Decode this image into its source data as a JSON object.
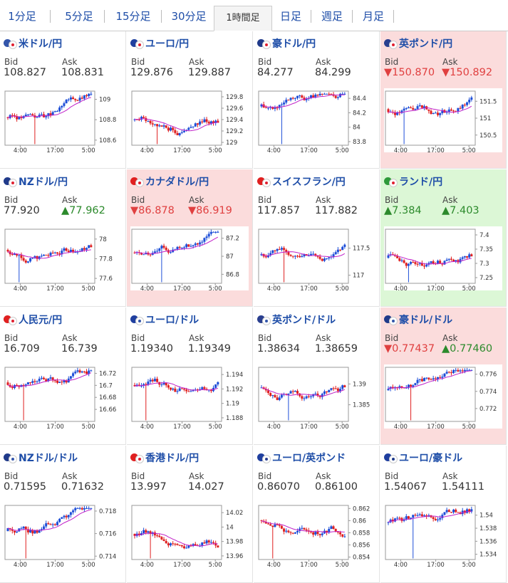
{
  "tabs": [
    {
      "label": "1分足",
      "active": false
    },
    {
      "label": "5分足",
      "active": false
    },
    {
      "label": "15分足",
      "active": false
    },
    {
      "label": "30分足",
      "active": false
    },
    {
      "label": "1時間足",
      "active": true
    },
    {
      "label": "日足",
      "active": false
    },
    {
      "label": "週足",
      "active": false
    },
    {
      "label": "月足",
      "active": false
    }
  ],
  "labels": {
    "bid": "Bid",
    "ask": "Ask"
  },
  "x_ticks": [
    "4:00",
    "17:00",
    "5:00"
  ],
  "colors": {
    "up": "#1e4fd8",
    "down": "#e02020",
    "ma": "#c020c8",
    "trend": "#2aa0e0",
    "down_bg": "#fbdcdc",
    "up_bg": "#dcf7d6"
  },
  "pairs": [
    {
      "name": "米ドル/円",
      "flag": "us-jp",
      "bid": "108.827",
      "ask": "108.831",
      "state": "none",
      "bid_dir": "",
      "ask_dir": "",
      "y_ticks": [
        "109",
        "108.8",
        "108.6"
      ],
      "ylim": [
        108.55,
        109.08
      ]
    },
    {
      "name": "ユーロ/円",
      "flag": "eu-jp",
      "bid": "129.876",
      "ask": "129.887",
      "state": "none",
      "bid_dir": "",
      "ask_dir": "",
      "y_ticks": [
        "129.8",
        "129.6",
        "129.4",
        "129.2",
        "129"
      ],
      "ylim": [
        128.95,
        129.9
      ]
    },
    {
      "name": "豪ドル/円",
      "flag": "au-jp",
      "bid": "84.277",
      "ask": "84.299",
      "state": "none",
      "bid_dir": "",
      "ask_dir": "",
      "y_ticks": [
        "84.4",
        "84.2",
        "84",
        "83.8"
      ],
      "ylim": [
        83.75,
        84.5
      ]
    },
    {
      "name": "英ポンド/円",
      "flag": "gb-jp",
      "bid": "▼150.870",
      "ask": "▼150.892",
      "state": "down",
      "bid_dir": "dn",
      "ask_dir": "dn",
      "y_ticks": [
        "151.5",
        "151",
        "150.5"
      ],
      "ylim": [
        150.2,
        151.8
      ]
    },
    {
      "name": "NZドル/円",
      "flag": "nz-jp",
      "bid": "77.920",
      "ask": "▲77.962",
      "state": "none",
      "bid_dir": "",
      "ask_dir": "upc",
      "y_ticks": [
        "78",
        "77.8",
        "77.6"
      ],
      "ylim": [
        77.55,
        78.1
      ]
    },
    {
      "name": "カナダドル/円",
      "flag": "ca-jp",
      "bid": "▼86.878",
      "ask": "▼86.919",
      "state": "down",
      "bid_dir": "dn",
      "ask_dir": "dn",
      "y_ticks": [
        "87.2",
        "87",
        "86.8"
      ],
      "ylim": [
        86.7,
        87.3
      ]
    },
    {
      "name": "スイスフラン/円",
      "flag": "ch-jp",
      "bid": "117.857",
      "ask": "117.882",
      "state": "none",
      "bid_dir": "",
      "ask_dir": "",
      "y_ticks": [
        "117.5",
        "117"
      ],
      "ylim": [
        116.85,
        117.85
      ]
    },
    {
      "name": "ランド/円",
      "flag": "za-jp",
      "bid": "▲7.384",
      "ask": "▲7.403",
      "state": "up",
      "bid_dir": "upc",
      "ask_dir": "upc",
      "y_ticks": [
        "7.4",
        "7.35",
        "7.3",
        "7.25"
      ],
      "ylim": [
        7.23,
        7.42
      ]
    },
    {
      "name": "人民元/円",
      "flag": "cn-jp",
      "bid": "16.709",
      "ask": "16.739",
      "state": "none",
      "bid_dir": "",
      "ask_dir": "",
      "y_ticks": [
        "16.72",
        "16.7",
        "16.68",
        "16.66"
      ],
      "ylim": [
        16.64,
        16.73
      ]
    },
    {
      "name": "ユーロ/ドル",
      "flag": "eu-us",
      "bid": "1.19340",
      "ask": "1.19349",
      "state": "none",
      "bid_dir": "",
      "ask_dir": "",
      "y_ticks": [
        "1.194",
        "1.192",
        "1.19",
        "1.188"
      ],
      "ylim": [
        1.1875,
        1.195
      ]
    },
    {
      "name": "英ポンド/ドル",
      "flag": "gb-us",
      "bid": "1.38634",
      "ask": "1.38659",
      "state": "none",
      "bid_dir": "",
      "ask_dir": "",
      "y_ticks": [
        "1.39",
        "1.385"
      ],
      "ylim": [
        1.381,
        1.394
      ]
    },
    {
      "name": "豪ドル/ドル",
      "flag": "au-us",
      "bid": "▼0.77437",
      "ask": "▲0.77460",
      "state": "down",
      "bid_dir": "dn",
      "ask_dir": "upc",
      "y_ticks": [
        "0.776",
        "0.774",
        "0.772"
      ],
      "ylim": [
        0.7705,
        0.7768
      ]
    },
    {
      "name": "NZドル/ドル",
      "flag": "nz-us",
      "bid": "0.71595",
      "ask": "0.71632",
      "state": "none",
      "bid_dir": "",
      "ask_dir": "",
      "y_ticks": [
        "0.718",
        "0.716",
        "0.714"
      ],
      "ylim": [
        0.7137,
        0.7185
      ]
    },
    {
      "name": "香港ドル/円",
      "flag": "hk-jp",
      "bid": "13.997",
      "ask": "14.027",
      "state": "none",
      "bid_dir": "",
      "ask_dir": "",
      "y_ticks": [
        "14.02",
        "14",
        "13.98",
        "13.96"
      ],
      "ylim": [
        13.955,
        14.03
      ]
    },
    {
      "name": "ユーロ/英ポンド",
      "flag": "eu-gb",
      "bid": "0.86070",
      "ask": "0.86100",
      "state": "none",
      "bid_dir": "",
      "ask_dir": "",
      "y_ticks": [
        "0.862",
        "0.86",
        "0.858",
        "0.856",
        "0.854"
      ],
      "ylim": [
        0.8536,
        0.8625
      ]
    },
    {
      "name": "ユーロ/豪ドル",
      "flag": "eu-au",
      "bid": "1.54067",
      "ask": "1.54111",
      "state": "none",
      "bid_dir": "",
      "ask_dir": "",
      "y_ticks": [
        "1.54",
        "1.538",
        "1.536",
        "1.534"
      ],
      "ylim": [
        1.5332,
        1.5415
      ]
    }
  ]
}
